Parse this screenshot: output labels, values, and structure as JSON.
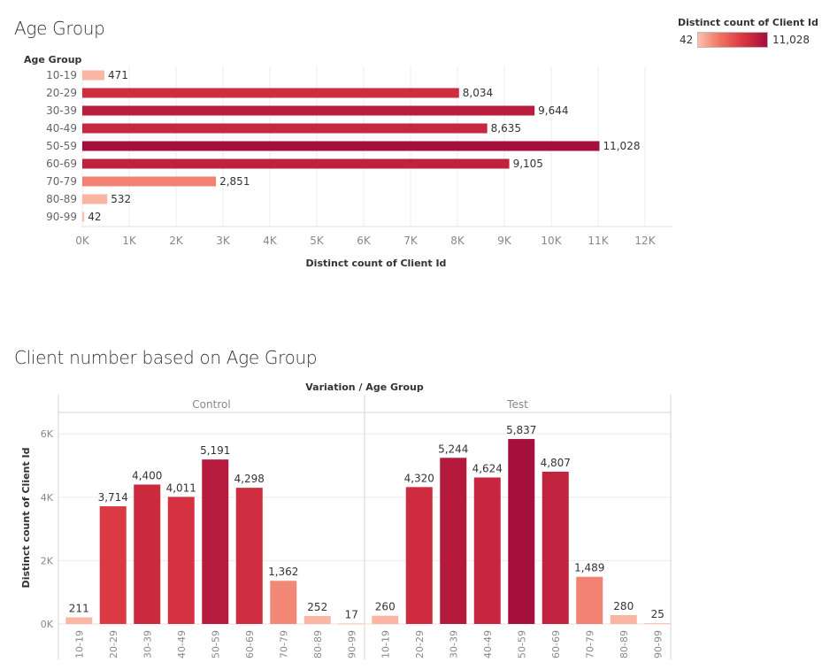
{
  "chart_data": [
    {
      "type": "bar",
      "orientation": "horizontal",
      "title": "Age Group",
      "category_axis_label": "Age Group",
      "xlabel": "Distinct count of Client Id",
      "categories": [
        "10-19",
        "20-29",
        "30-39",
        "40-49",
        "50-59",
        "60-69",
        "70-79",
        "80-89",
        "90-99"
      ],
      "values": [
        471,
        8034,
        9644,
        8635,
        11028,
        9105,
        2851,
        532,
        42
      ],
      "value_labels": [
        "471",
        "8,034",
        "9,644",
        "8,635",
        "11,028",
        "9,105",
        "2,851",
        "532",
        "42"
      ],
      "xlim": [
        0,
        12000
      ],
      "x_ticks": [
        0,
        1000,
        2000,
        3000,
        4000,
        5000,
        6000,
        7000,
        8000,
        9000,
        10000,
        11000,
        12000
      ],
      "x_tick_labels": [
        "0K",
        "1K",
        "2K",
        "3K",
        "4K",
        "5K",
        "6K",
        "7K",
        "8K",
        "9K",
        "10K",
        "11K",
        "12K"
      ],
      "grid": true,
      "color_legend": {
        "title": "Distinct count of Client Id",
        "min_label": "42",
        "max_label": "11,028",
        "min": 42,
        "max": 11028,
        "colors": [
          "#fcbfad",
          "#ef6f5f",
          "#d93340",
          "#a50f3c"
        ],
        "placement": "top-right"
      }
    },
    {
      "type": "bar",
      "orientation": "vertical",
      "title": "Client number based on Age Group",
      "header": "Variation / Age Group",
      "ylabel": "Distinct count of Client Id",
      "ylim": [
        0,
        7000
      ],
      "y_ticks": [
        0,
        2000,
        4000,
        6000
      ],
      "y_tick_labels": [
        "0K",
        "2K",
        "4K",
        "6K"
      ],
      "grid": true,
      "panels": [
        {
          "name": "Control",
          "categories": [
            "10-19",
            "20-29",
            "30-39",
            "40-49",
            "50-59",
            "60-69",
            "70-79",
            "80-89",
            "90-99"
          ],
          "values": [
            211,
            3714,
            4400,
            4011,
            5191,
            4298,
            1362,
            252,
            17
          ],
          "value_labels": [
            "211",
            "3,714",
            "4,400",
            "4,011",
            "5,191",
            "4,298",
            "1,362",
            "252",
            "17"
          ]
        },
        {
          "name": "Test",
          "categories": [
            "10-19",
            "20-29",
            "30-39",
            "40-49",
            "50-59",
            "60-69",
            "70-79",
            "80-89",
            "90-99"
          ],
          "values": [
            260,
            4320,
            5244,
            4624,
            5837,
            4807,
            1489,
            280,
            25
          ],
          "value_labels": [
            "260",
            "4,320",
            "5,244",
            "4,624",
            "5,837",
            "4,807",
            "1,489",
            "280",
            "25"
          ]
        }
      ],
      "color_range": [
        17,
        5837
      ]
    }
  ]
}
